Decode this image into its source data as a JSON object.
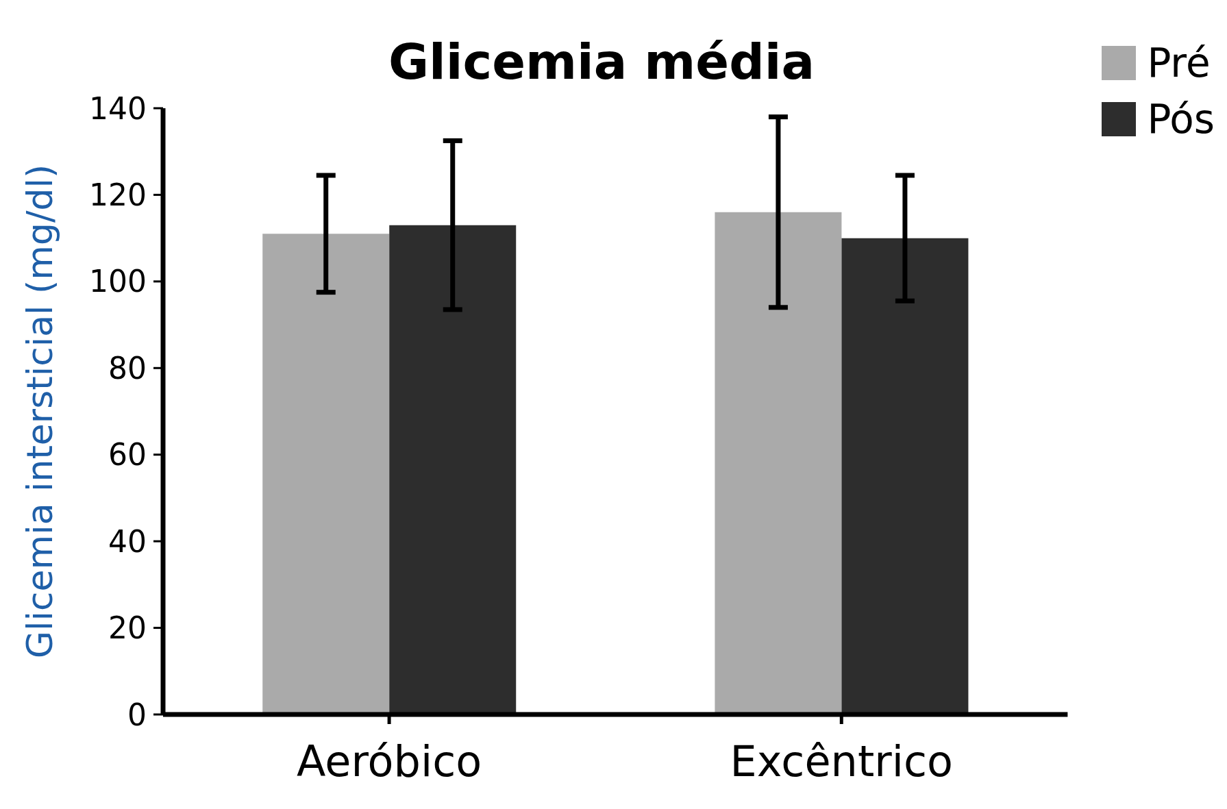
{
  "chart_data": {
    "type": "bar",
    "title": "Glicemia média",
    "ylabel": "Glicemia intersticial (mg/dl)",
    "categories": [
      "Aeróbico",
      "Excêntrico"
    ],
    "series": [
      {
        "name": "Pré",
        "color": "#aaaaaa",
        "values": [
          111,
          116
        ],
        "errors": [
          13.5,
          22
        ]
      },
      {
        "name": "Pós",
        "color": "#2d2d2d",
        "values": [
          113,
          110
        ],
        "errors": [
          19.5,
          14.5
        ]
      }
    ],
    "ylim": [
      0,
      140
    ],
    "yticks": [
      0,
      20,
      40,
      60,
      80,
      100,
      120,
      140
    ],
    "grid": false,
    "legend": "top right"
  }
}
